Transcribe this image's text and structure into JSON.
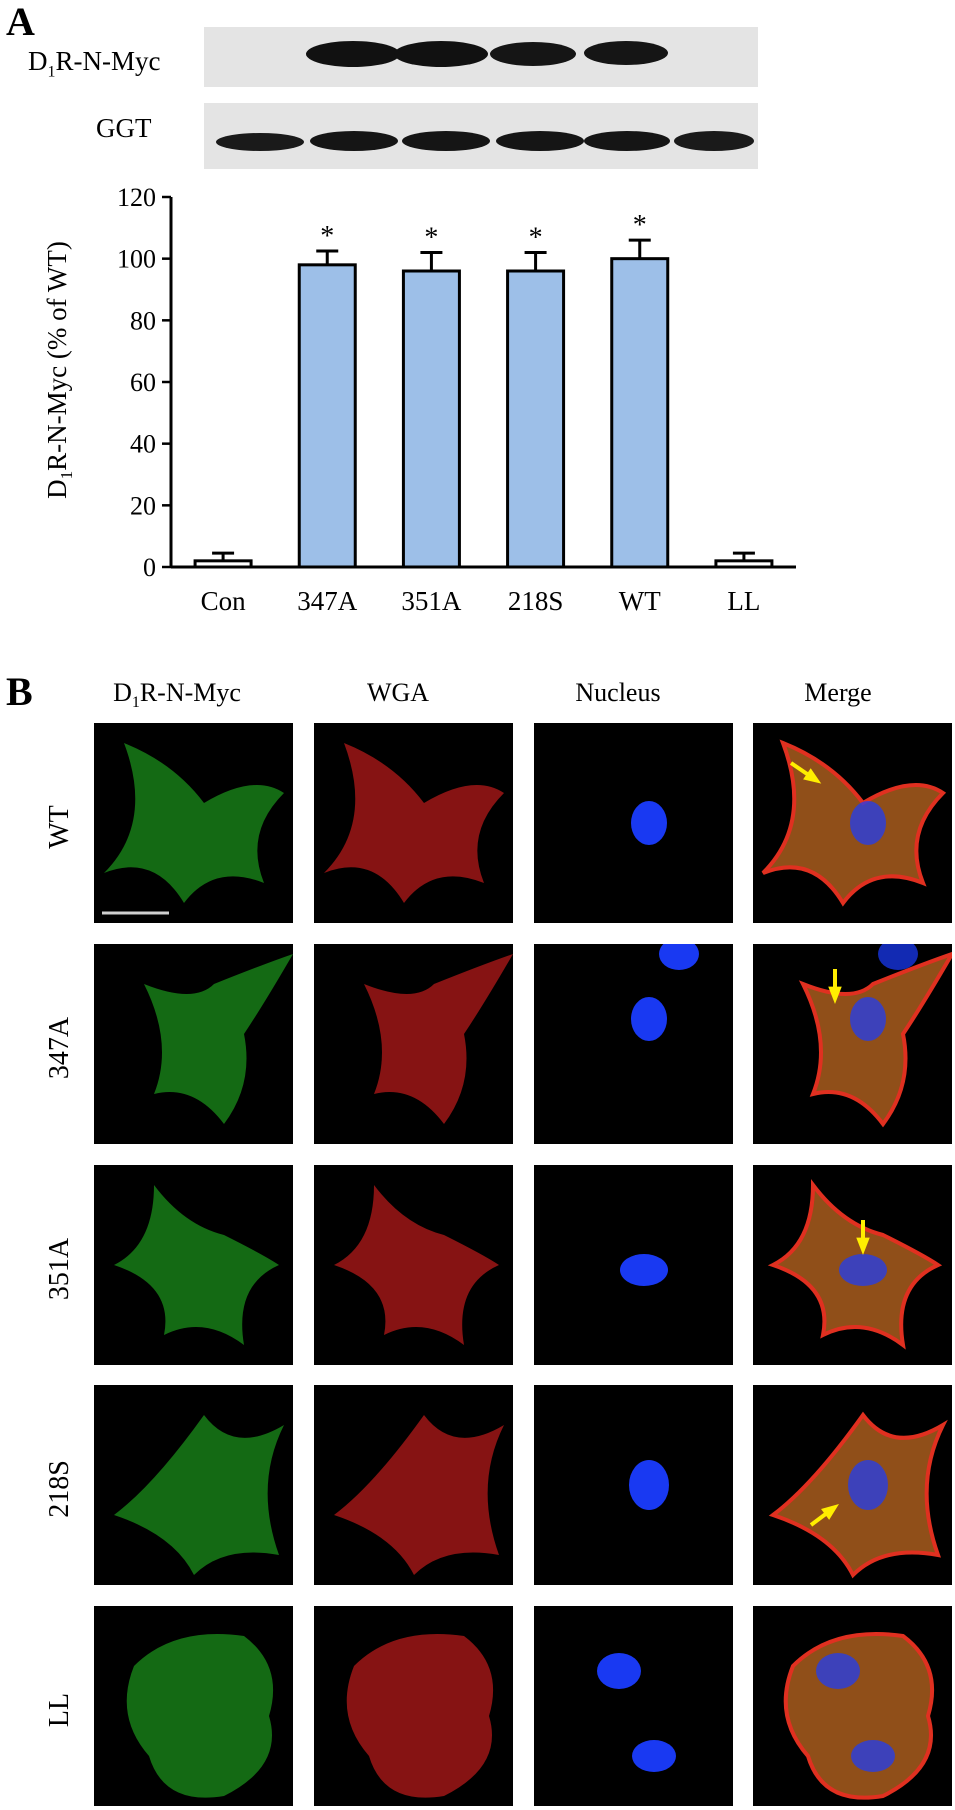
{
  "panel_a": {
    "letter": "A",
    "blot_labels": {
      "main": "D",
      "sub": "1",
      "rest": "R-N-Myc",
      "loading": "GGT"
    },
    "y_axis_label": {
      "main": "D",
      "sub": "1",
      "rest": "R-N-Myc  (% of WT)"
    }
  },
  "chart_data": {
    "type": "bar",
    "categories": [
      "Con",
      "347A",
      "351A",
      "218S",
      "WT",
      "LL"
    ],
    "values": [
      2,
      98,
      96,
      96,
      100,
      2
    ],
    "error": [
      2.5,
      4.5,
      6,
      6,
      6,
      2.5
    ],
    "significance": [
      "",
      "*",
      "*",
      "*",
      "*",
      ""
    ],
    "bar_colors": [
      "#ffffff",
      "#9dbfe8",
      "#9dbfe8",
      "#9dbfe8",
      "#9dbfe8",
      "#ffffff"
    ],
    "ylim": [
      0,
      120
    ],
    "yticks": [
      0,
      20,
      40,
      60,
      80,
      100,
      120
    ],
    "xlabel": "",
    "grid": false
  },
  "panel_b": {
    "letter": "B",
    "col_headers": [
      {
        "main": "D",
        "sub": "1",
        "rest": "R-N-Myc"
      },
      {
        "main": "WGA",
        "sub": "",
        "rest": ""
      },
      {
        "main": "Nucleus",
        "sub": "",
        "rest": ""
      },
      {
        "main": "Merge",
        "sub": "",
        "rest": ""
      }
    ],
    "rows": [
      "WT",
      "347A",
      "351A",
      "218S",
      "LL"
    ],
    "channel_colors": [
      "#22b022",
      "#e02020",
      "#1a3cff",
      "#c06a22"
    ]
  }
}
